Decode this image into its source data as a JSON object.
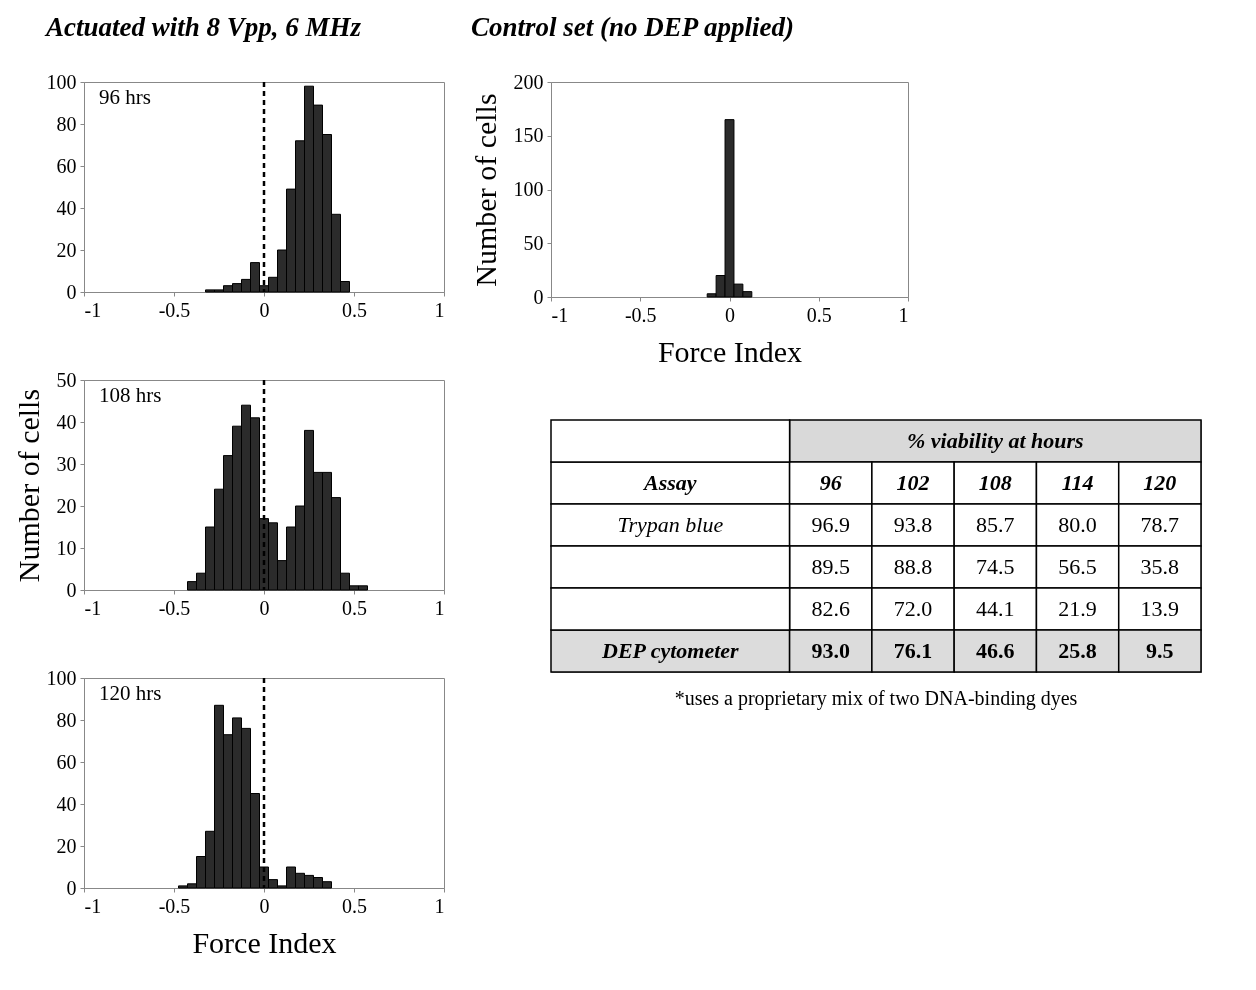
{
  "chart_data": [
    {
      "type": "histogram",
      "title": "Actuated with 8 Vpp, 6 MHz",
      "annotations": [
        "96 hrs"
      ],
      "color": "#2b2b2b",
      "bins": [
        -0.325,
        -0.275,
        -0.225,
        -0.175,
        -0.125,
        -0.075,
        -0.025,
        0.025,
        0.075,
        0.125,
        0.175,
        0.225,
        0.275,
        0.325,
        0.375,
        0.425,
        0.475
      ],
      "values": [
        1,
        1,
        3,
        4,
        6,
        14,
        3,
        7,
        20,
        49,
        72,
        98,
        89,
        75,
        37,
        5
      ],
      "xlim": [
        -1,
        1
      ],
      "xticks": [
        -1,
        -0.5,
        0,
        0.5,
        1
      ],
      "ylim": [
        0,
        100
      ],
      "yticks": [
        0,
        20,
        40,
        60,
        80,
        100
      ],
      "ref_lines": [
        {
          "axis": "x",
          "value": 0,
          "line_style": "dashed",
          "color": "#000000"
        }
      ]
    },
    {
      "type": "histogram",
      "ylabel": "Number of cells",
      "annotations": [
        "108 hrs"
      ],
      "color": "#2b2b2b",
      "bins": [
        -0.425,
        -0.375,
        -0.325,
        -0.275,
        -0.225,
        -0.175,
        -0.125,
        -0.075,
        -0.025,
        0.025,
        0.075,
        0.125,
        0.175,
        0.225,
        0.275,
        0.325,
        0.375,
        0.425,
        0.475,
        0.525,
        0.575
      ],
      "values": [
        2,
        4,
        15,
        24,
        32,
        39,
        44,
        41,
        17,
        16,
        7,
        15,
        20,
        38,
        28,
        28,
        22,
        4,
        1,
        1
      ],
      "xlim": [
        -1,
        1
      ],
      "xticks": [
        -1,
        -0.5,
        0,
        0.5,
        1
      ],
      "ylim": [
        0,
        50
      ],
      "yticks": [
        0,
        10,
        20,
        30,
        40,
        50
      ],
      "ref_lines": [
        {
          "axis": "x",
          "value": 0,
          "line_style": "dashed",
          "color": "#000000"
        }
      ]
    },
    {
      "type": "histogram",
      "xlabel": "Force Index",
      "annotations": [
        "120 hrs"
      ],
      "color": "#2b2b2b",
      "bins": [
        -0.475,
        -0.425,
        -0.375,
        -0.325,
        -0.275,
        -0.225,
        -0.175,
        -0.125,
        -0.075,
        -0.025,
        0.025,
        0.075,
        0.125,
        0.175,
        0.225,
        0.275,
        0.325,
        0.375
      ],
      "values": [
        1,
        2,
        15,
        27,
        87,
        73,
        81,
        76,
        45,
        10,
        4,
        1,
        10,
        7,
        6,
        5,
        3
      ],
      "xlim": [
        -1,
        1
      ],
      "xticks": [
        -1,
        -0.5,
        0,
        0.5,
        1
      ],
      "ylim": [
        0,
        100
      ],
      "yticks": [
        0,
        20,
        40,
        60,
        80,
        100
      ],
      "ref_lines": [
        {
          "axis": "x",
          "value": 0,
          "line_style": "dashed",
          "color": "#000000"
        }
      ]
    },
    {
      "type": "histogram",
      "title": "Control set (no DEP applied)",
      "xlabel": "Force Index",
      "ylabel": "Number of cells",
      "color": "#2b2b2b",
      "bins": [
        -0.125,
        -0.075,
        -0.025,
        0.025,
        0.075,
        0.125
      ],
      "values": [
        3,
        20,
        165,
        12,
        5
      ],
      "xlim": [
        -1,
        1
      ],
      "xticks": [
        -1,
        -0.5,
        0,
        0.5,
        1
      ],
      "ylim": [
        0,
        200
      ],
      "yticks": [
        0,
        50,
        100,
        150,
        200
      ]
    },
    {
      "type": "heatmap",
      "xlabel": "% viability at hours",
      "ylabel": "Assay",
      "data_labels": true,
      "cell_labels": [
        [
          "96.9",
          "93.8",
          "85.7",
          "80.0",
          "78.7"
        ],
        [
          "89.5",
          "88.8",
          "74.5",
          "56.5",
          "35.8"
        ],
        [
          "82.6",
          "72.0",
          "44.1",
          "21.9",
          "13.9"
        ],
        [
          "93.0",
          "76.1",
          "46.6",
          "25.8",
          "9.5"
        ]
      ],
      "categories": [
        "96",
        "102",
        "108",
        "114",
        "120"
      ],
      "y_categories": [
        "Trypan blue",
        null,
        null,
        "DEP cytometer"
      ],
      "cells": [
        [
          96.9,
          93.8,
          85.7,
          80.0,
          78.7
        ],
        [
          89.5,
          88.8,
          74.5,
          56.5,
          35.8
        ],
        [
          82.6,
          72.0,
          44.1,
          21.9,
          13.9
        ],
        [
          93.0,
          76.1,
          46.6,
          25.8,
          9.5
        ]
      ],
      "annotations": [
        "*uses a proprietary mix of two DNA-binding dyes"
      ]
    }
  ]
}
